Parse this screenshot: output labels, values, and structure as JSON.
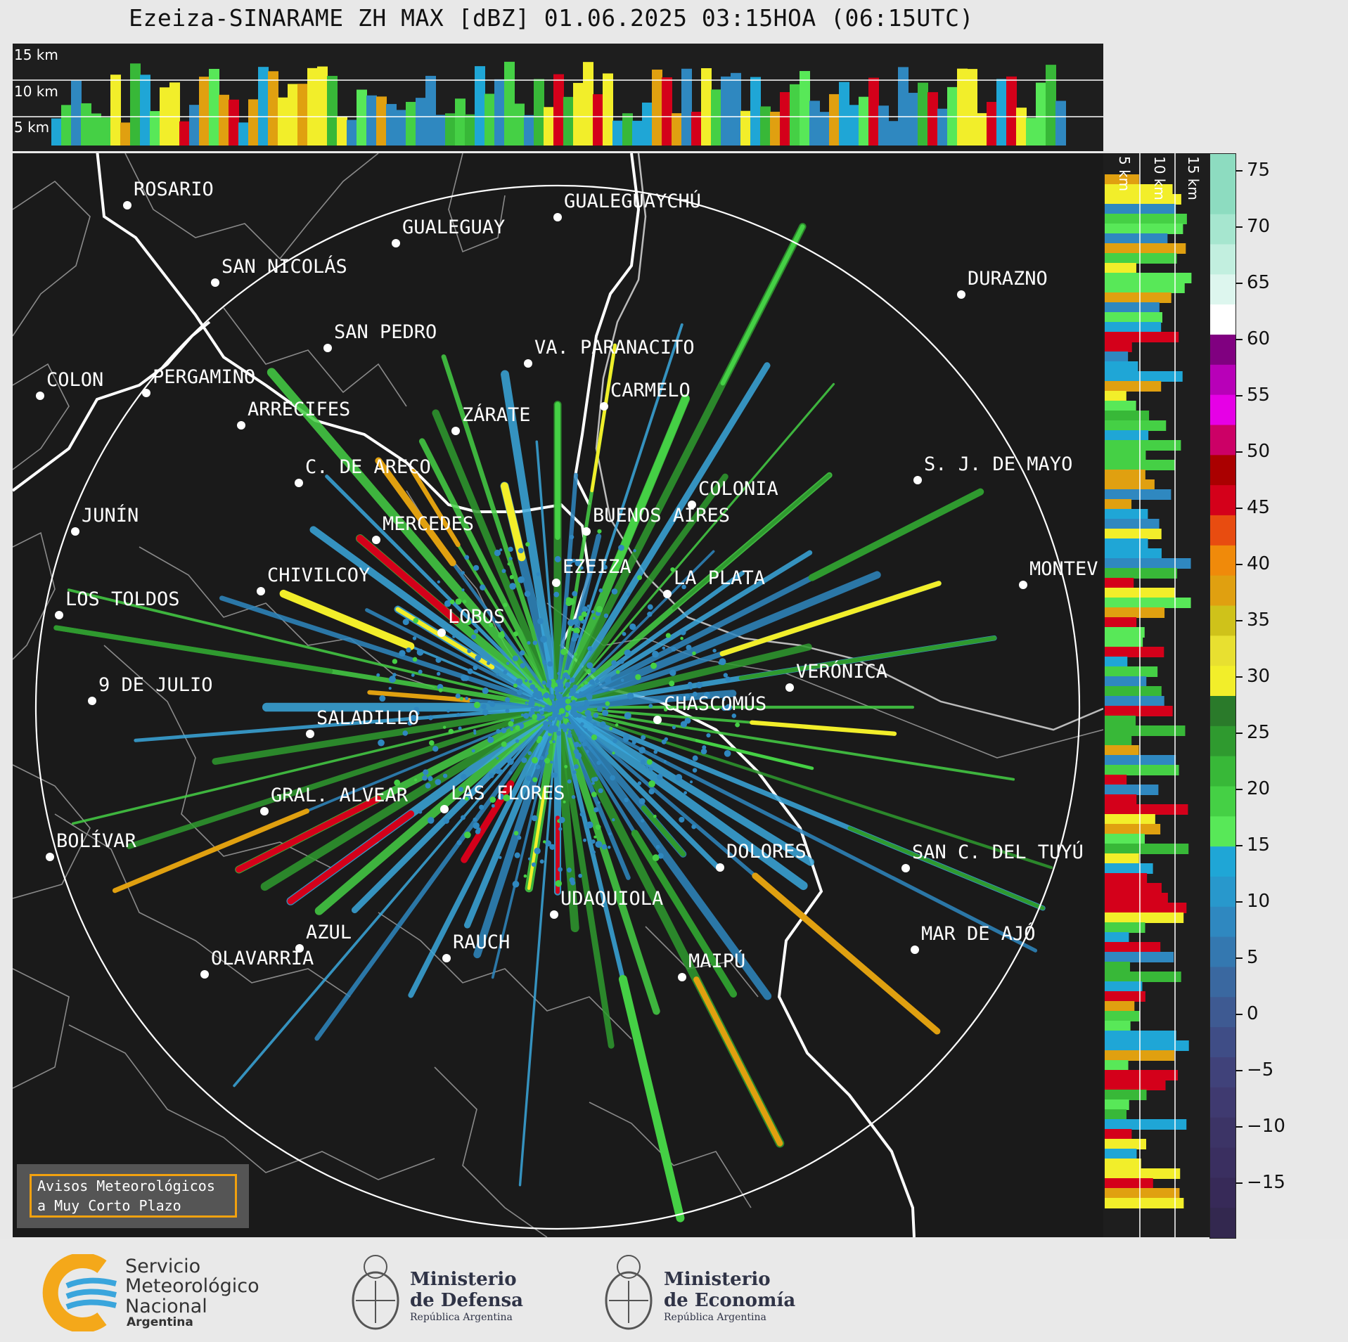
{
  "title": "Ezeiza-SINARAME ZH MAX [dBZ] 01.06.2025 03:15HOA (06:15UTC)",
  "height_labels_top": [
    "15 km",
    "10 km",
    "5 km"
  ],
  "height_labels_right": [
    "5 km",
    "10 km",
    "15 km"
  ],
  "colorbar": {
    "ticks": [
      "75",
      "70",
      "65",
      "60",
      "55",
      "50",
      "45",
      "40",
      "35",
      "30",
      "25",
      "20",
      "15",
      "10",
      "5",
      "0",
      "−5",
      "−10",
      "−15"
    ]
  },
  "cities": [
    {
      "name": "ROSARIO"
    },
    {
      "name": "GUALEGUAYCHÚ"
    },
    {
      "name": "GUALEGUAY"
    },
    {
      "name": "SAN NICOLÁS"
    },
    {
      "name": "DURAZNO"
    },
    {
      "name": "SAN PEDRO"
    },
    {
      "name": "VA. PARANACITO"
    },
    {
      "name": "COLON"
    },
    {
      "name": "PERGAMINO"
    },
    {
      "name": "CARMELO"
    },
    {
      "name": "ARRECIFES"
    },
    {
      "name": "ZÁRATE"
    },
    {
      "name": "S. J. DE MAYO"
    },
    {
      "name": "C. DE ARECO"
    },
    {
      "name": "COLONIA"
    },
    {
      "name": "JUNÍN"
    },
    {
      "name": "BUENOS AIRES"
    },
    {
      "name": "MERCEDES"
    },
    {
      "name": "EZEIZA"
    },
    {
      "name": "MONTEV"
    },
    {
      "name": "CHIVILCOY"
    },
    {
      "name": "LA PLATA"
    },
    {
      "name": "LOS TOLDOS"
    },
    {
      "name": "LOBOS"
    },
    {
      "name": "VERÓNICA"
    },
    {
      "name": "9 DE JULIO"
    },
    {
      "name": "CHASCOMÚS"
    },
    {
      "name": "SALADILLO"
    },
    {
      "name": "GRAL. ALVEAR"
    },
    {
      "name": "LAS FLORES"
    },
    {
      "name": "BOLÍVAR"
    },
    {
      "name": "DOLORES"
    },
    {
      "name": "SAN C. DEL TUYÚ"
    },
    {
      "name": "UDAQUIOLA"
    },
    {
      "name": "AZUL"
    },
    {
      "name": "RAUCH"
    },
    {
      "name": "MAR DE AJÓ"
    },
    {
      "name": "OLAVARRÍA"
    },
    {
      "name": "MAIPÚ"
    }
  ],
  "alert_box": {
    "line1": "Avisos Meteorológicos",
    "line2": "a Muy Corto Plazo"
  },
  "footer": {
    "smn": {
      "line1": "Servicio",
      "line2": "Meteorológico",
      "line3": "Nacional",
      "line4": "Argentina"
    },
    "defensa": {
      "line1": "Ministerio",
      "line2": "de Defensa",
      "line3": "República Argentina"
    },
    "economia": {
      "line1": "Ministerio",
      "line2": "de Economía",
      "line3": "República Argentina"
    }
  },
  "colors": {
    "map_bg": "#1a1a1a",
    "range_ring": "#ffffff",
    "coast": "#ffffff",
    "borders": "#8a8a8a",
    "alert_border": "#f2a10f"
  }
}
